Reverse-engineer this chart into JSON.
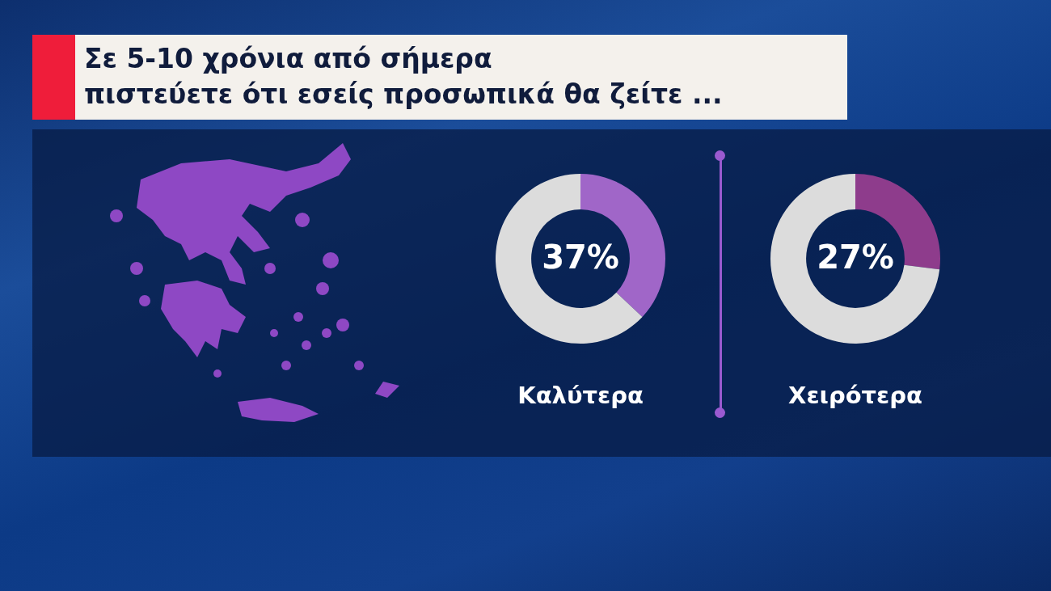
{
  "chart_data": [
    {
      "type": "donut",
      "title": "Σε 5-10 χρόνια από σήμερα\nπιστεύετε ότι εσείς προσωπικά θα ζείτε ...",
      "xlabel": "Καλύτερα",
      "categories": [
        null,
        null
      ],
      "values": [
        37,
        63
      ],
      "colors": [
        "#a066c8",
        "#dcdcdc"
      ],
      "value_labels": [
        "37%",
        null
      ]
    },
    {
      "type": "donut",
      "xlabel": "Χειρότερα",
      "categories": [
        null,
        null
      ],
      "values": [
        27,
        73
      ],
      "colors": [
        "#8e3c8c",
        "#dcdcdc"
      ],
      "value_labels": [
        "27%",
        null
      ]
    }
  ]
}
